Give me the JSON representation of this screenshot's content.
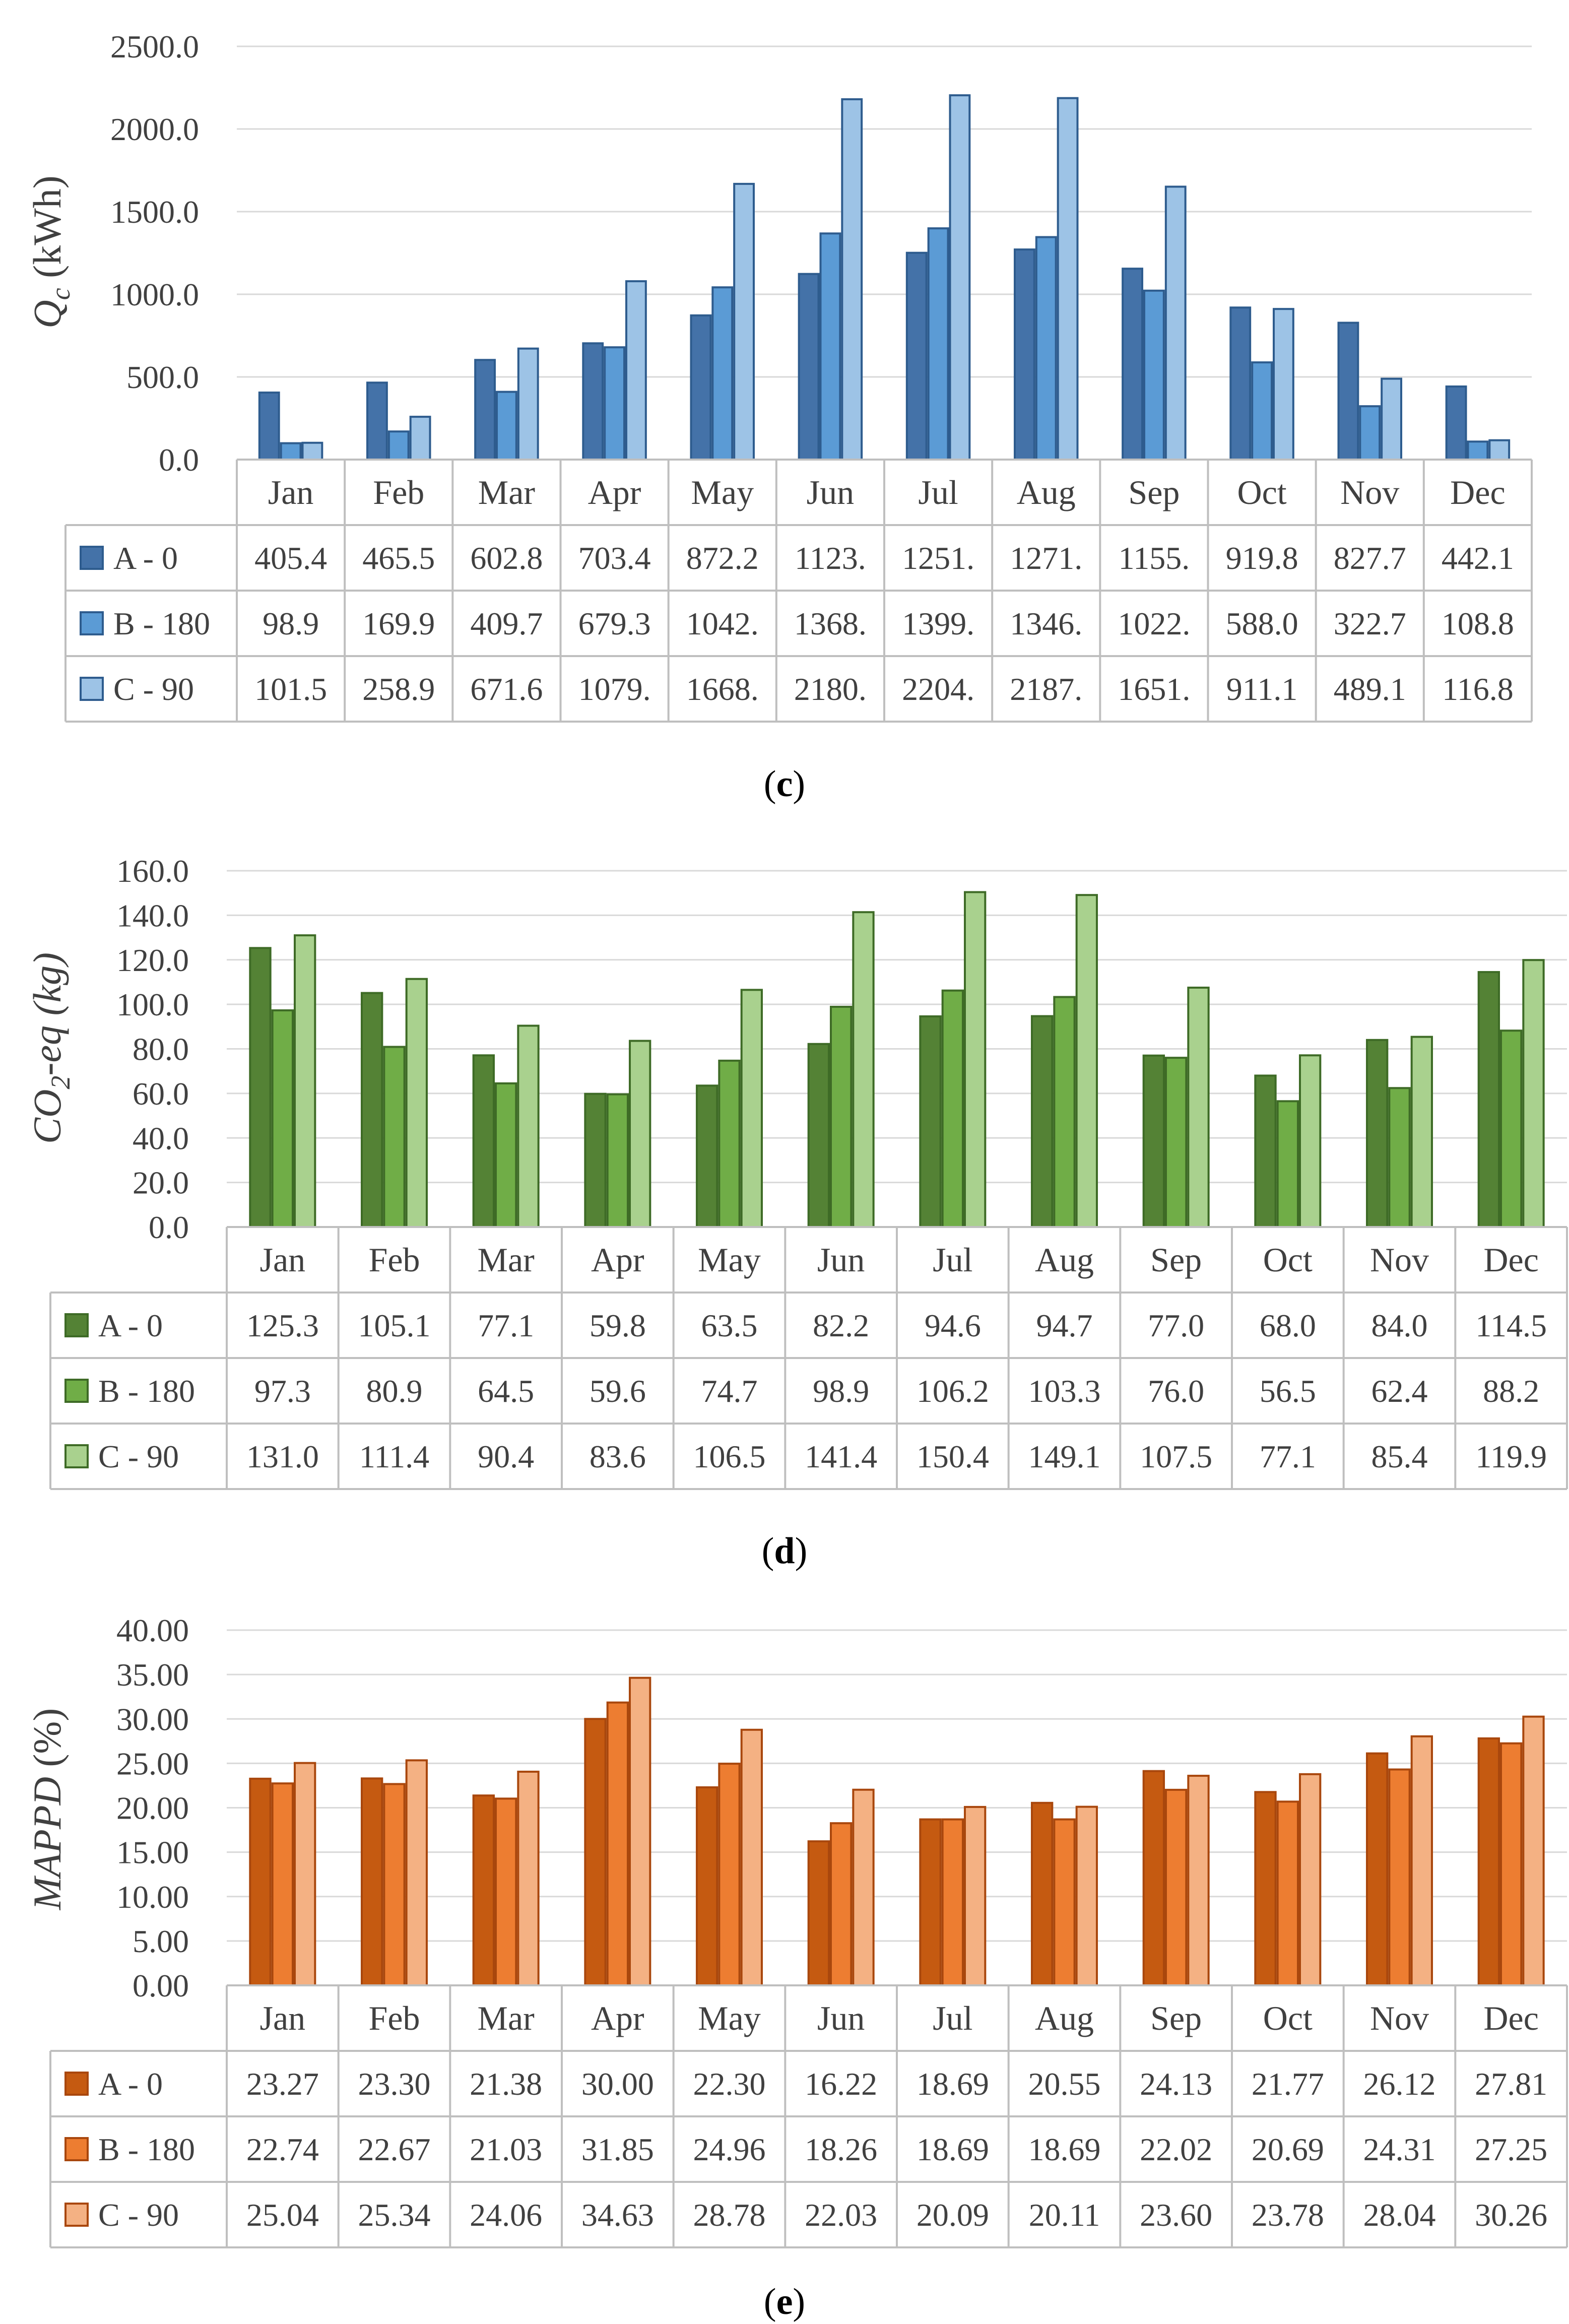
{
  "chart_data": [
    {
      "type": "bar",
      "panel_label": "c",
      "ylabel": "Q",
      "ylabel_sub": "c",
      "ylabel_unit": " (kWh)",
      "ylim": [
        0,
        2500
      ],
      "ytick_step": 500,
      "ytick_labels": [
        "0.0",
        "500.0",
        "1000.0",
        "1500.0",
        "2000.0",
        "2500.0"
      ],
      "grid": true,
      "colors": {
        "fill": [
          "#4472a8",
          "#5b9bd5",
          "#9dc3e6"
        ],
        "stroke": "#2e5c8e"
      },
      "categories": [
        "Jan",
        "Feb",
        "Mar",
        "Apr",
        "May",
        "Jun",
        "Jul",
        "Aug",
        "Sep",
        "Oct",
        "Nov",
        "Dec"
      ],
      "series": [
        {
          "name": "A - 0",
          "values": [
            405.4,
            465.5,
            602.8,
            703.4,
            872.2,
            1123,
            1251,
            1271,
            1155,
            919.8,
            827.7,
            442.1
          ],
          "labels": [
            "405.4",
            "465.5",
            "602.8",
            "703.4",
            "872.2",
            "1123.",
            "1251.",
            "1271.",
            "1155.",
            "919.8",
            "827.7",
            "442.1"
          ]
        },
        {
          "name": "B - 180",
          "values": [
            98.9,
            169.9,
            409.7,
            679.3,
            1042,
            1368,
            1399,
            1346,
            1022,
            588.0,
            322.7,
            108.8
          ],
          "labels": [
            "98.9",
            "169.9",
            "409.7",
            "679.3",
            "1042.",
            "1368.",
            "1399.",
            "1346.",
            "1022.",
            "588.0",
            "322.7",
            "108.8"
          ]
        },
        {
          "name": "C - 90",
          "values": [
            101.5,
            258.9,
            671.6,
            1079,
            1668,
            2180,
            2204,
            2187,
            1651,
            911.1,
            489.1,
            116.8
          ],
          "labels": [
            "101.5",
            "258.9",
            "671.6",
            "1079.",
            "1668.",
            "2180.",
            "2204.",
            "2187.",
            "1651.",
            "911.1",
            "489.1",
            "116.8"
          ]
        }
      ]
    },
    {
      "type": "bar",
      "panel_label": "d",
      "ylabel": "CO",
      "ylabel_sub": "2",
      "ylabel_unit": "-eq (kg)",
      "ylim": [
        0,
        160
      ],
      "ytick_step": 20,
      "ytick_labels": [
        "0.0",
        "20.0",
        "40.0",
        "60.0",
        "80.0",
        "100.0",
        "120.0",
        "140.0",
        "160.0"
      ],
      "grid": true,
      "colors": {
        "fill": [
          "#548235",
          "#70ad47",
          "#a9d18e"
        ],
        "stroke": "#3e6b26"
      },
      "categories": [
        "Jan",
        "Feb",
        "Mar",
        "Apr",
        "May",
        "Jun",
        "Jul",
        "Aug",
        "Sep",
        "Oct",
        "Nov",
        "Dec"
      ],
      "series": [
        {
          "name": "A - 0",
          "values": [
            125.3,
            105.1,
            77.1,
            59.8,
            63.5,
            82.2,
            94.6,
            94.7,
            77.0,
            68.0,
            84.0,
            114.5
          ],
          "labels": [
            "125.3",
            "105.1",
            "77.1",
            "59.8",
            "63.5",
            "82.2",
            "94.6",
            "94.7",
            "77.0",
            "68.0",
            "84.0",
            "114.5"
          ]
        },
        {
          "name": "B - 180",
          "values": [
            97.3,
            80.9,
            64.5,
            59.6,
            74.7,
            98.9,
            106.2,
            103.3,
            76.0,
            56.5,
            62.4,
            88.2
          ],
          "labels": [
            "97.3",
            "80.9",
            "64.5",
            "59.6",
            "74.7",
            "98.9",
            "106.2",
            "103.3",
            "76.0",
            "56.5",
            "62.4",
            "88.2"
          ]
        },
        {
          "name": "C - 90",
          "values": [
            131.0,
            111.4,
            90.4,
            83.6,
            106.5,
            141.4,
            150.4,
            149.1,
            107.5,
            77.1,
            85.4,
            119.9
          ],
          "labels": [
            "131.0",
            "111.4",
            "90.4",
            "83.6",
            "106.5",
            "141.4",
            "150.4",
            "149.1",
            "107.5",
            "77.1",
            "85.4",
            "119.9"
          ]
        }
      ]
    },
    {
      "type": "bar",
      "panel_label": "e",
      "ylabel": "MAPPD",
      "ylabel_sub": "",
      "ylabel_unit": " (%)",
      "ylim": [
        0,
        40
      ],
      "ytick_step": 5,
      "ytick_labels": [
        "0.00",
        "5.00",
        "10.00",
        "15.00",
        "20.00",
        "25.00",
        "30.00",
        "35.00",
        "40.00"
      ],
      "grid": true,
      "colors": {
        "fill": [
          "#c55a11",
          "#ed7d31",
          "#f4b183"
        ],
        "stroke": "#a9470d"
      },
      "categories": [
        "Jan",
        "Feb",
        "Mar",
        "Apr",
        "May",
        "Jun",
        "Jul",
        "Aug",
        "Sep",
        "Oct",
        "Nov",
        "Dec"
      ],
      "series": [
        {
          "name": "A - 0",
          "values": [
            23.27,
            23.3,
            21.38,
            30.0,
            22.3,
            16.22,
            18.69,
            20.55,
            24.13,
            21.77,
            26.12,
            27.81
          ],
          "labels": [
            "23.27",
            "23.30",
            "21.38",
            "30.00",
            "22.30",
            "16.22",
            "18.69",
            "20.55",
            "24.13",
            "21.77",
            "26.12",
            "27.81"
          ]
        },
        {
          "name": "B - 180",
          "values": [
            22.74,
            22.67,
            21.03,
            31.85,
            24.96,
            18.26,
            18.69,
            18.69,
            22.02,
            20.69,
            24.31,
            27.25
          ],
          "labels": [
            "22.74",
            "22.67",
            "21.03",
            "31.85",
            "24.96",
            "18.26",
            "18.69",
            "18.69",
            "22.02",
            "20.69",
            "24.31",
            "27.25"
          ]
        },
        {
          "name": "C - 90",
          "values": [
            25.04,
            25.34,
            24.06,
            34.63,
            28.78,
            22.03,
            20.09,
            20.11,
            23.6,
            23.78,
            28.04,
            30.26
          ],
          "labels": [
            "25.04",
            "25.34",
            "24.06",
            "34.63",
            "28.78",
            "22.03",
            "20.09",
            "20.11",
            "23.60",
            "23.78",
            "28.04",
            "30.26"
          ]
        }
      ]
    }
  ]
}
